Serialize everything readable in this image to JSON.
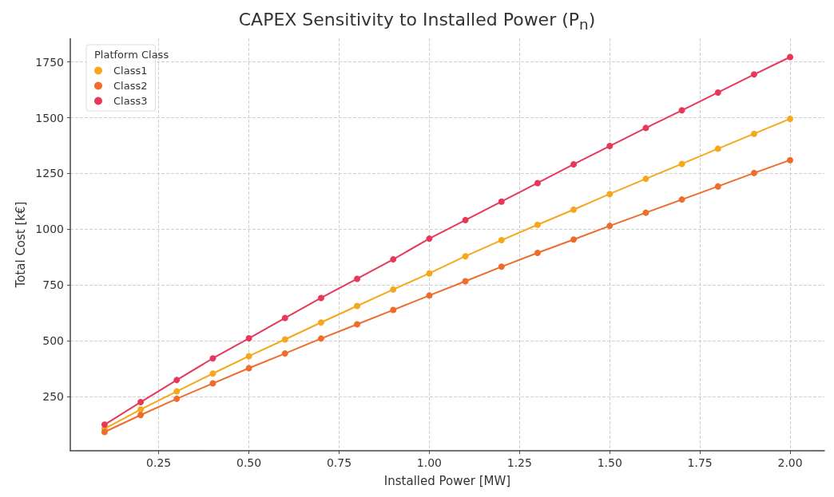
{
  "chart_data": {
    "type": "line",
    "title": "CAPEX Sensitivity to Installed Power (P$_{n}$)",
    "xlabel": "Installed Power [MW]",
    "ylabel": "Total Cost [k€]",
    "legend_title": "Platform Class",
    "x": [
      0.1,
      0.2,
      0.3,
      0.4,
      0.5,
      0.6,
      0.7,
      0.8,
      0.9,
      1.0,
      1.1,
      1.2,
      1.3,
      1.4,
      1.5,
      1.6,
      1.7,
      1.8,
      1.9,
      2.0
    ],
    "series": [
      {
        "name": "Class1",
        "color": "#f5a81c",
        "values": [
          106,
          192,
          273,
          353,
          431,
          506,
          582,
          656,
          730,
          802,
          879,
          951,
          1020,
          1088,
          1158,
          1226,
          1293,
          1361,
          1428,
          1495
        ]
      },
      {
        "name": "Class2",
        "color": "#ee6c2c",
        "values": [
          91,
          167,
          240,
          309,
          377,
          443,
          510,
          574,
          638,
          703,
          767,
          832,
          894,
          954,
          1015,
          1074,
          1133,
          1192,
          1252,
          1310
        ]
      },
      {
        "name": "Class3",
        "color": "#e8385a",
        "values": [
          124,
          225,
          324,
          421,
          511,
          602,
          692,
          778,
          865,
          958,
          1041,
          1124,
          1207,
          1291,
          1373,
          1454,
          1533,
          1613,
          1694,
          1772
        ]
      }
    ],
    "xlim": [
      0.005,
      2.095
    ],
    "xticks": [
      {
        "value": 0.25,
        "label": "0.25"
      },
      {
        "value": 0.5,
        "label": "0.50"
      },
      {
        "value": 0.75,
        "label": "0.75"
      },
      {
        "value": 1.0,
        "label": "1.00"
      },
      {
        "value": 1.25,
        "label": "1.25"
      },
      {
        "value": 1.5,
        "label": "1.50"
      },
      {
        "value": 1.75,
        "label": "1.75"
      },
      {
        "value": 2.0,
        "label": "2.00"
      }
    ],
    "ylim": [
      7,
      1856
    ],
    "yticks": [
      250,
      500,
      750,
      1000,
      1250,
      1500,
      1750
    ],
    "grid": true,
    "legend": "top left",
    "marker": "circle",
    "line_style": "solid"
  }
}
